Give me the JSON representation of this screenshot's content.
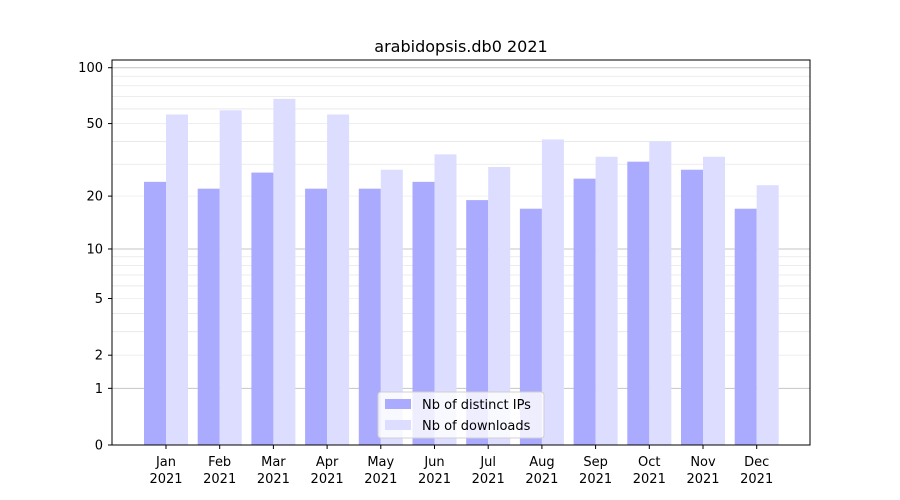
{
  "chart_data": {
    "type": "bar",
    "title": "arabidopsis.db0 2021",
    "xlabel": "",
    "ylabel": "",
    "yscale": "log(1+y)",
    "ylim": [
      0,
      110
    ],
    "yticks": [
      0,
      1,
      2,
      5,
      10,
      20,
      50,
      100
    ],
    "grid": true,
    "legend_position": "bottom-center",
    "categories": [
      {
        "month": "Jan",
        "year": "2021"
      },
      {
        "month": "Feb",
        "year": "2021"
      },
      {
        "month": "Mar",
        "year": "2021"
      },
      {
        "month": "Apr",
        "year": "2021"
      },
      {
        "month": "May",
        "year": "2021"
      },
      {
        "month": "Jun",
        "year": "2021"
      },
      {
        "month": "Jul",
        "year": "2021"
      },
      {
        "month": "Aug",
        "year": "2021"
      },
      {
        "month": "Sep",
        "year": "2021"
      },
      {
        "month": "Oct",
        "year": "2021"
      },
      {
        "month": "Nov",
        "year": "2021"
      },
      {
        "month": "Dec",
        "year": "2021"
      }
    ],
    "series": [
      {
        "name": "Nb of distinct IPs",
        "color": "#aaaaff",
        "values": [
          24,
          22,
          27,
          22,
          22,
          24,
          19,
          17,
          25,
          31,
          28,
          17
        ]
      },
      {
        "name": "Nb of downloads",
        "color": "#ddddff",
        "values": [
          56,
          59,
          68,
          56,
          28,
          34,
          29,
          41,
          33,
          40,
          33,
          23
        ]
      }
    ]
  }
}
